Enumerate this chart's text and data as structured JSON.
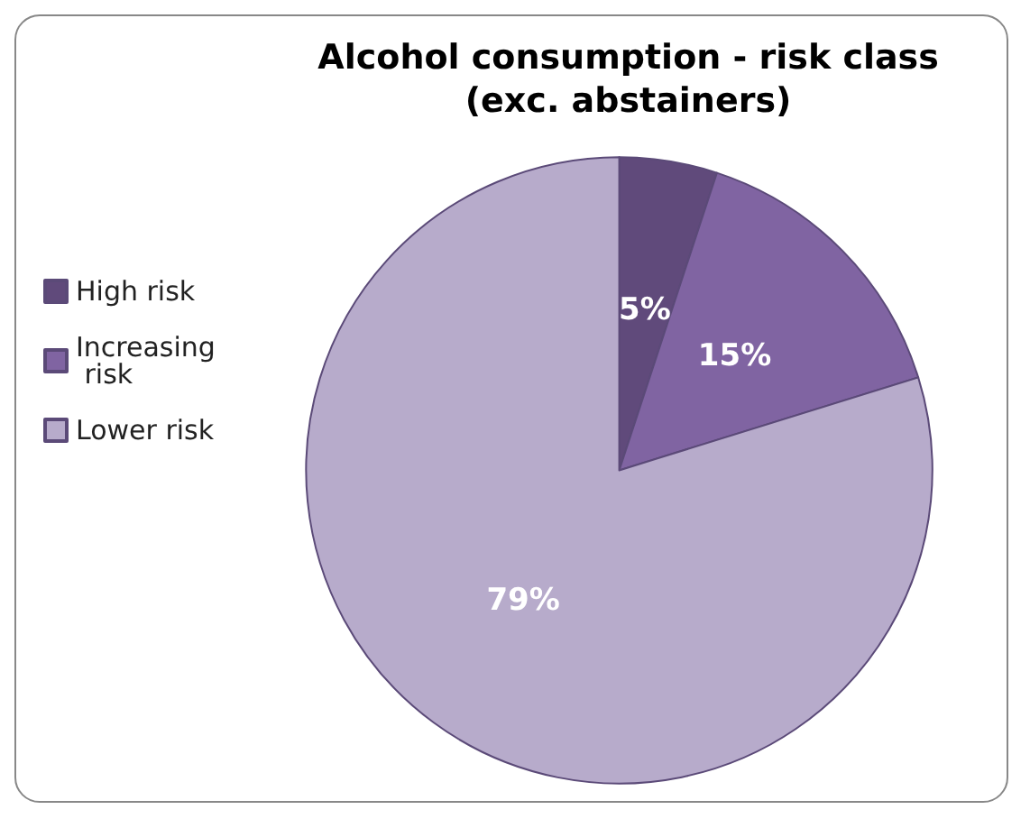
{
  "chart_data": {
    "type": "pie",
    "title": "Alcohol consumption - risk class\n(exc. abstainers)",
    "categories": [
      "High risk",
      "Increasing risk",
      "Lower risk"
    ],
    "values": [
      5,
      15,
      79
    ],
    "colors": [
      "#604a7b",
      "#8064a2",
      "#b7abcb"
    ],
    "value_labels": [
      "5%",
      "15%",
      "79%"
    ],
    "legend": "left"
  }
}
